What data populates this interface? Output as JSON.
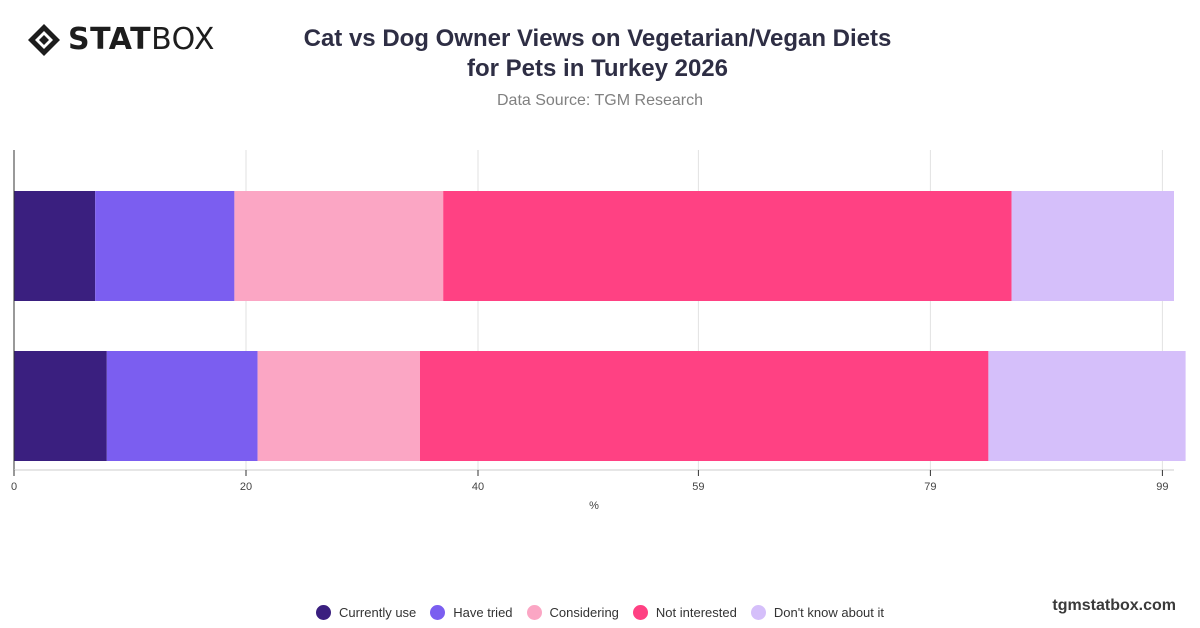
{
  "brand": {
    "bold": "STAT",
    "light": "BOX",
    "icon": "diamond-logo-icon"
  },
  "header": {
    "title_line1": "Cat vs Dog Owner Views on Vegetarian/Vegan Diets",
    "title_line2": "for Pets in Turkey 2026",
    "subtitle": "Data Source: TGM Research"
  },
  "watermark": "tgmstatbox.com",
  "chart_data": {
    "type": "bar",
    "orientation": "horizontal",
    "stacked": true,
    "categories": [
      "",
      ""
    ],
    "xlabel": "%",
    "xlim": [
      0,
      100
    ],
    "xticks": [
      0,
      20,
      40,
      59,
      79,
      99
    ],
    "grid": true,
    "legend_position": "bottom",
    "series": [
      {
        "name": "Currently use",
        "color": "#3a1f7f",
        "values": [
          7,
          8
        ]
      },
      {
        "name": "Have tried",
        "color": "#7b5ef0",
        "values": [
          12,
          13
        ]
      },
      {
        "name": "Considering",
        "color": "#fba6c4",
        "values": [
          18,
          14
        ]
      },
      {
        "name": "Not interested",
        "color": "#ff4183",
        "values": [
          49,
          49
        ]
      },
      {
        "name": "Don't know about it",
        "color": "#d5bffa",
        "values": [
          14,
          17
        ]
      }
    ]
  }
}
